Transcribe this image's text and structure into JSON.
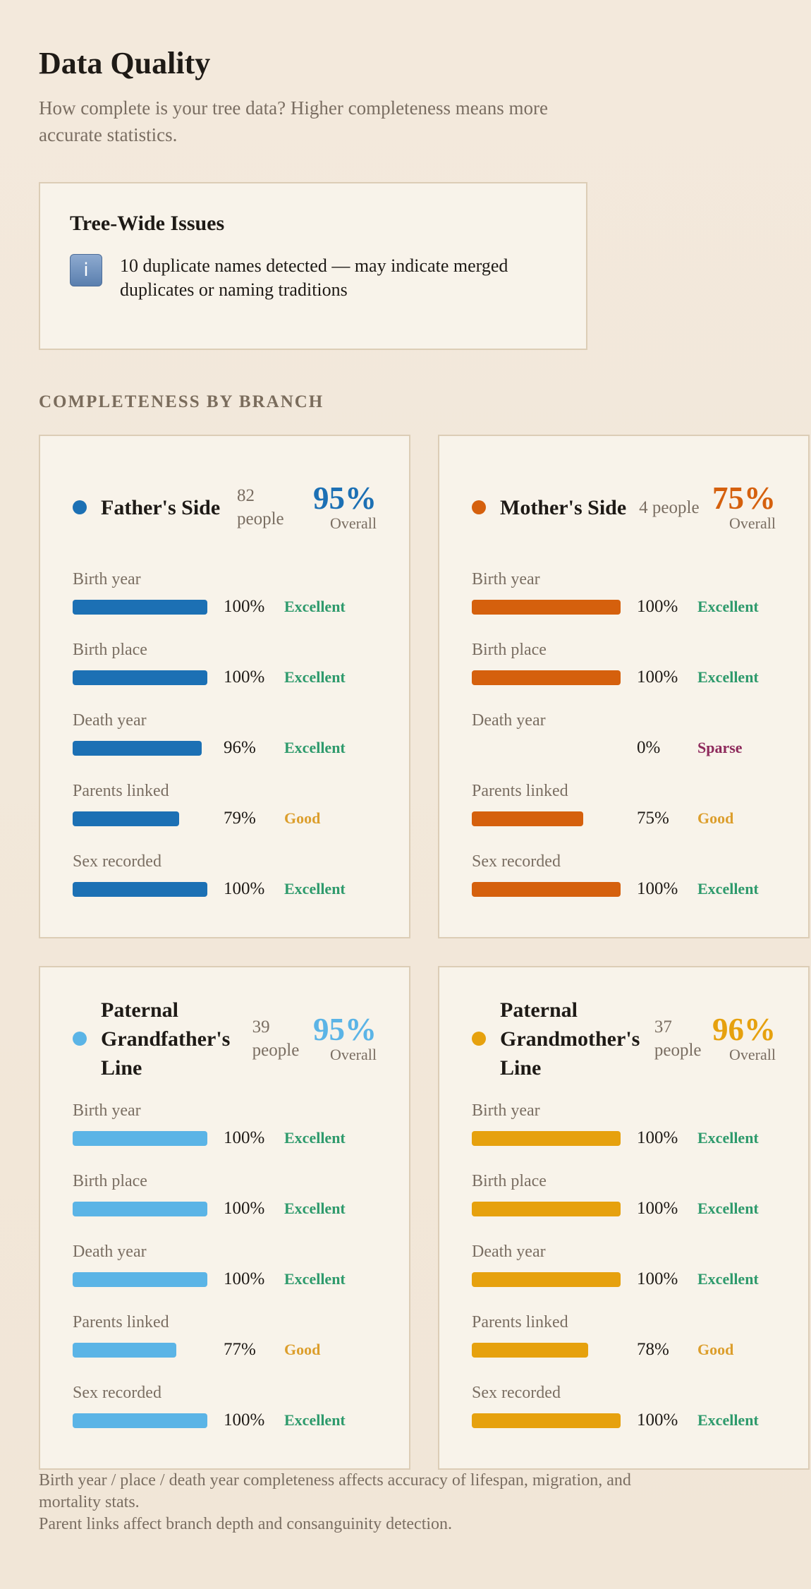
{
  "header": {
    "title": "Data Quality",
    "subtitle": "How complete is your tree data? Higher completeness means more accurate statistics."
  },
  "issues": {
    "title": "Tree-Wide Issues",
    "items": [
      {
        "icon": "i",
        "text": "10 duplicate names detected — may indicate merged duplicates or naming traditions"
      }
    ]
  },
  "section_label": "COMPLETENESS BY BRANCH",
  "status_colors": {
    "Excellent": "#2e9a6c",
    "Good": "#dc9e2c",
    "Sparse": "#8e2a5c"
  },
  "branches": [
    {
      "name": "Father's Side",
      "people": "82 people",
      "overall": "95%",
      "overall_label": "Overall",
      "color": "#1c70b4",
      "fields": [
        {
          "label": "Birth year",
          "value": 100,
          "value_label": "100%",
          "status": "Excellent"
        },
        {
          "label": "Birth place",
          "value": 100,
          "value_label": "100%",
          "status": "Excellent"
        },
        {
          "label": "Death year",
          "value": 96,
          "value_label": "96%",
          "status": "Excellent"
        },
        {
          "label": "Parents linked",
          "value": 79,
          "value_label": "79%",
          "status": "Good"
        },
        {
          "label": "Sex recorded",
          "value": 100,
          "value_label": "100%",
          "status": "Excellent"
        }
      ]
    },
    {
      "name": "Mother's Side",
      "people": "4 people",
      "overall": "75%",
      "overall_label": "Overall",
      "color": "#d5600d",
      "fields": [
        {
          "label": "Birth year",
          "value": 100,
          "value_label": "100%",
          "status": "Excellent"
        },
        {
          "label": "Birth place",
          "value": 100,
          "value_label": "100%",
          "status": "Excellent"
        },
        {
          "label": "Death year",
          "value": 0,
          "value_label": "0%",
          "status": "Sparse"
        },
        {
          "label": "Parents linked",
          "value": 75,
          "value_label": "75%",
          "status": "Good"
        },
        {
          "label": "Sex recorded",
          "value": 100,
          "value_label": "100%",
          "status": "Excellent"
        }
      ]
    },
    {
      "name": "Paternal Grandfather's Line",
      "people": "39 people",
      "overall": "95%",
      "overall_label": "Overall",
      "color": "#5bb4e6",
      "fields": [
        {
          "label": "Birth year",
          "value": 100,
          "value_label": "100%",
          "status": "Excellent"
        },
        {
          "label": "Birth place",
          "value": 100,
          "value_label": "100%",
          "status": "Excellent"
        },
        {
          "label": "Death year",
          "value": 100,
          "value_label": "100%",
          "status": "Excellent"
        },
        {
          "label": "Parents linked",
          "value": 77,
          "value_label": "77%",
          "status": "Good"
        },
        {
          "label": "Sex recorded",
          "value": 100,
          "value_label": "100%",
          "status": "Excellent"
        }
      ]
    },
    {
      "name": "Paternal Grandmother's Line",
      "people": "37 people",
      "overall": "96%",
      "overall_label": "Overall",
      "color": "#e6a10e",
      "fields": [
        {
          "label": "Birth year",
          "value": 100,
          "value_label": "100%",
          "status": "Excellent"
        },
        {
          "label": "Birth place",
          "value": 100,
          "value_label": "100%",
          "status": "Excellent"
        },
        {
          "label": "Death year",
          "value": 100,
          "value_label": "100%",
          "status": "Excellent"
        },
        {
          "label": "Parents linked",
          "value": 78,
          "value_label": "78%",
          "status": "Good"
        },
        {
          "label": "Sex recorded",
          "value": 100,
          "value_label": "100%",
          "status": "Excellent"
        }
      ]
    }
  ],
  "footer": [
    "Birth year / place / death year completeness affects accuracy of lifespan, migration, and mortality stats.",
    "Parent links affect branch depth and consanguinity detection."
  ]
}
